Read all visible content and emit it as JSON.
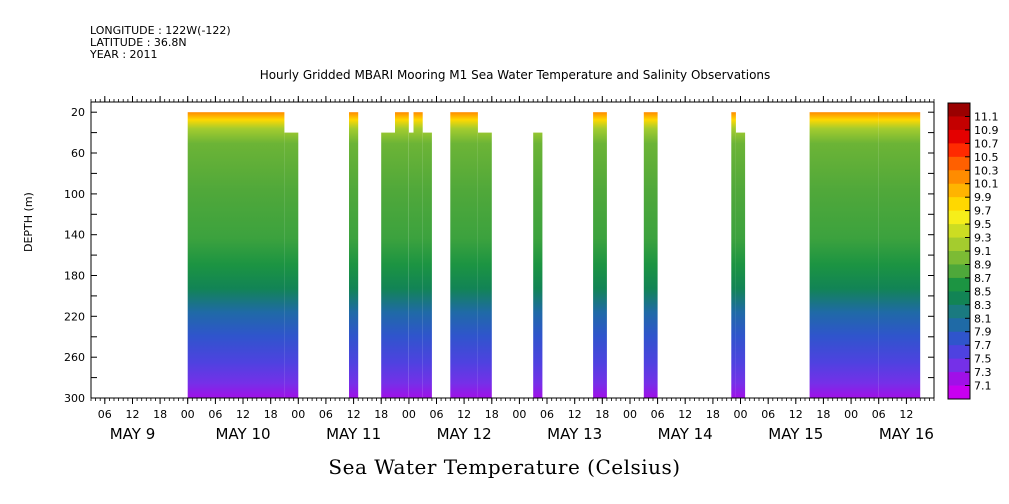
{
  "header": {
    "longitude": "LONGITUDE : 122W(-122)",
    "latitude": "LATITUDE : 36.8N",
    "year": "YEAR : 2011"
  },
  "title": "Hourly Gridded MBARI Mooring M1 Sea Water Temperature and Salinity Observations",
  "variable_caption": "Sea Water Temperature (Celsius)",
  "chart_data": {
    "type": "heatmap",
    "title": "Hourly Gridded MBARI Mooring M1 Sea Water Temperature and Salinity Observations",
    "xlabel": "",
    "ylabel": "DEPTH (m)",
    "x_unit": "hours since May 9 2011 00:00",
    "xlim": [
      3,
      186
    ],
    "ylim": [
      300,
      10
    ],
    "y_ticks": [
      20,
      60,
      100,
      140,
      180,
      220,
      260,
      300
    ],
    "hour_ticks": [
      {
        "h": 6,
        "label": "06"
      },
      {
        "h": 12,
        "label": "12"
      },
      {
        "h": 18,
        "label": "18"
      },
      {
        "h": 24,
        "label": "00"
      },
      {
        "h": 30,
        "label": "06"
      },
      {
        "h": 36,
        "label": "12"
      },
      {
        "h": 42,
        "label": "18"
      },
      {
        "h": 48,
        "label": "00"
      },
      {
        "h": 54,
        "label": "06"
      },
      {
        "h": 60,
        "label": "12"
      },
      {
        "h": 66,
        "label": "18"
      },
      {
        "h": 72,
        "label": "00"
      },
      {
        "h": 78,
        "label": "06"
      },
      {
        "h": 84,
        "label": "12"
      },
      {
        "h": 90,
        "label": "18"
      },
      {
        "h": 96,
        "label": "00"
      },
      {
        "h": 102,
        "label": "06"
      },
      {
        "h": 108,
        "label": "12"
      },
      {
        "h": 114,
        "label": "18"
      },
      {
        "h": 120,
        "label": "00"
      },
      {
        "h": 126,
        "label": "06"
      },
      {
        "h": 132,
        "label": "12"
      },
      {
        "h": 138,
        "label": "18"
      },
      {
        "h": 144,
        "label": "00"
      },
      {
        "h": 150,
        "label": "06"
      },
      {
        "h": 156,
        "label": "12"
      },
      {
        "h": 162,
        "label": "18"
      },
      {
        "h": 168,
        "label": "00"
      },
      {
        "h": 174,
        "label": "06"
      },
      {
        "h": 180,
        "label": "12"
      }
    ],
    "day_labels": [
      {
        "h": 12,
        "label": "MAY  9"
      },
      {
        "h": 36,
        "label": "MAY 10"
      },
      {
        "h": 60,
        "label": "MAY 11"
      },
      {
        "h": 84,
        "label": "MAY 12"
      },
      {
        "h": 108,
        "label": "MAY 13"
      },
      {
        "h": 132,
        "label": "MAY 14"
      },
      {
        "h": 156,
        "label": "MAY 15"
      },
      {
        "h": 180,
        "label": "MAY 16"
      }
    ],
    "colorbar": {
      "min": 7.1,
      "max": 11.1,
      "labels": [
        "11.1",
        "10.9",
        "10.7",
        "10.5",
        "10.3",
        "10.1",
        "9.9",
        "9.7",
        "9.5",
        "9.3",
        "9.1",
        "8.9",
        "8.7",
        "8.5",
        "8.3",
        "8.1",
        "7.9",
        "7.7",
        "7.5",
        "7.3",
        "7.1"
      ],
      "colors": [
        "#9a0000",
        "#c40000",
        "#e40000",
        "#ff2a00",
        "#ff6000",
        "#ff8c00",
        "#ffb400",
        "#ffd800",
        "#f6ee1a",
        "#ccdd22",
        "#a4cc2e",
        "#7cbb34",
        "#4ea83a",
        "#1c9442",
        "#128455",
        "#1a7a80",
        "#1f6aa6",
        "#2f55cc",
        "#4e42e0",
        "#7530e8",
        "#a010e8",
        "#c800f0"
      ]
    },
    "segments": [
      {
        "x0": 24,
        "x1": 45,
        "top_depth": 20
      },
      {
        "x0": 45,
        "x1": 48,
        "top_depth": 40
      },
      {
        "x0": 59,
        "x1": 61,
        "top_depth": 20
      },
      {
        "x0": 66,
        "x1": 69,
        "top_depth": 40
      },
      {
        "x0": 69,
        "x1": 72,
        "top_depth": 20
      },
      {
        "x0": 72,
        "x1": 73,
        "top_depth": 40
      },
      {
        "x0": 73,
        "x1": 75,
        "top_depth": 20
      },
      {
        "x0": 75,
        "x1": 77,
        "top_depth": 40
      },
      {
        "x0": 81,
        "x1": 87,
        "top_depth": 20
      },
      {
        "x0": 87,
        "x1": 90,
        "top_depth": 40
      },
      {
        "x0": 99,
        "x1": 101,
        "top_depth": 40
      },
      {
        "x0": 112,
        "x1": 115,
        "top_depth": 20
      },
      {
        "x0": 123,
        "x1": 126,
        "top_depth": 20
      },
      {
        "x0": 142,
        "x1": 143,
        "top_depth": 20
      },
      {
        "x0": 143,
        "x1": 145,
        "top_depth": 40
      },
      {
        "x0": 159,
        "x1": 174,
        "top_depth": 20
      },
      {
        "x0": 174,
        "x1": 183,
        "top_depth": 20
      }
    ]
  }
}
